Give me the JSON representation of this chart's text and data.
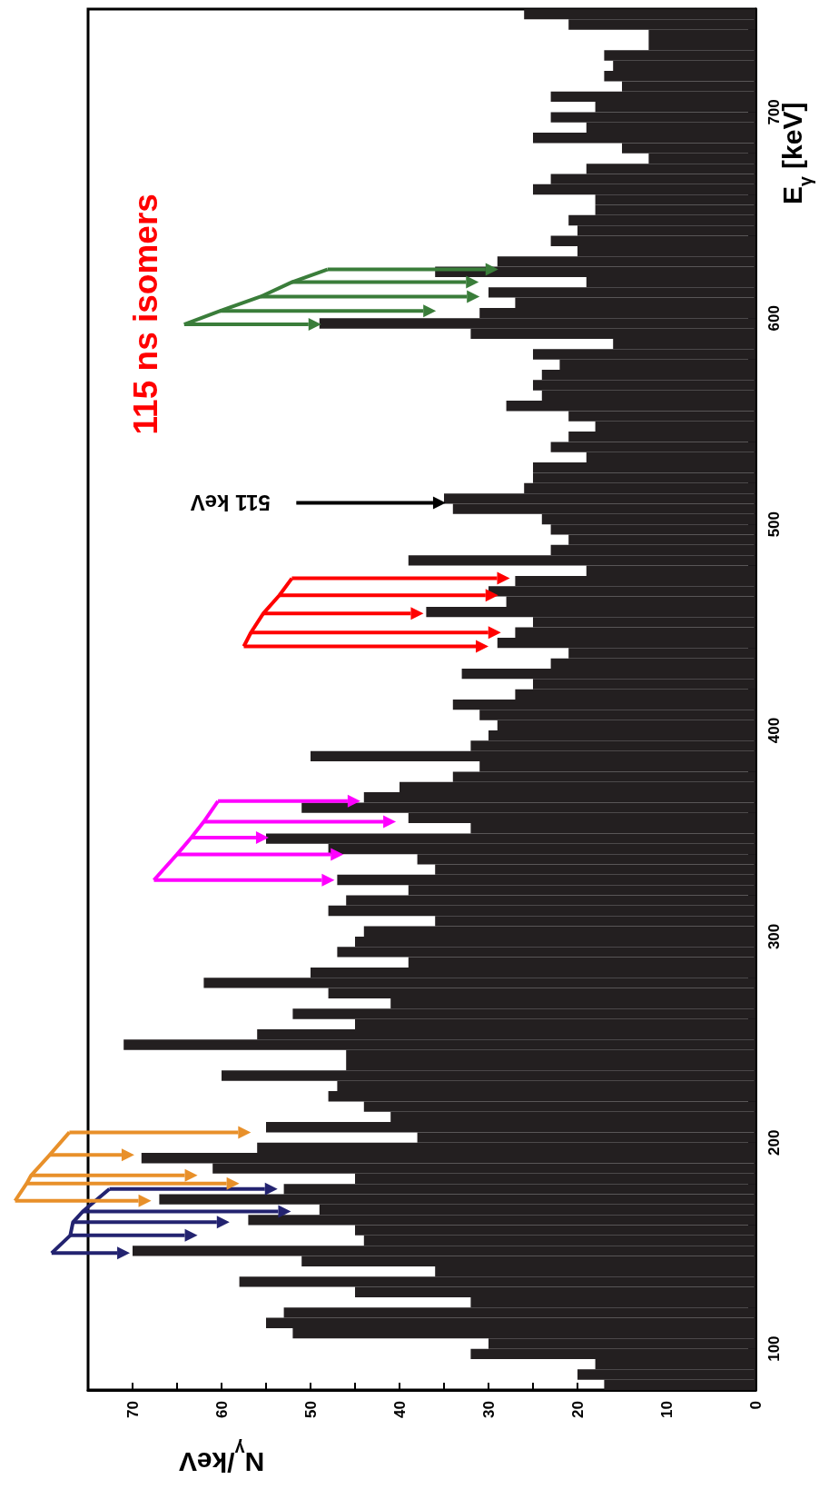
{
  "chart_data": {
    "type": "histogram",
    "orientation": "horizontal",
    "xlabel": "N$_{γ}$/keV",
    "ylabel": "E$_{γ}$ [keV]",
    "annotations": [
      "115 ns isomers",
      "511 keV"
    ],
    "color": "#231f20",
    "ylim": [
      80,
      750
    ],
    "xlim": [
      75,
      0
    ],
    "yticks": [
      {
        "value": 80,
        "label": null
      },
      100,
      {
        "value": 120,
        "label": null
      },
      {
        "value": 140,
        "label": null
      },
      {
        "value": 160,
        "label": null
      },
      {
        "value": 180,
        "label": null
      },
      200,
      {
        "value": 220,
        "label": null
      },
      {
        "value": 240,
        "label": null
      },
      {
        "value": 260,
        "label": null
      },
      {
        "value": 280,
        "label": null
      },
      300,
      {
        "value": 320,
        "label": null
      },
      {
        "value": 340,
        "label": null
      },
      {
        "value": 360,
        "label": null
      },
      {
        "value": 380,
        "label": null
      },
      400,
      {
        "value": 420,
        "label": null
      },
      {
        "value": 440,
        "label": null
      },
      {
        "value": 460,
        "label": null
      },
      {
        "value": 480,
        "label": null
      },
      500,
      {
        "value": 520,
        "label": null
      },
      {
        "value": 540,
        "label": null
      },
      {
        "value": 560,
        "label": null
      },
      {
        "value": 580,
        "label": null
      },
      600,
      {
        "value": 620,
        "label": null
      },
      {
        "value": 640,
        "label": null
      },
      {
        "value": 660,
        "label": null
      },
      {
        "value": 680,
        "label": null
      },
      700,
      {
        "value": 720,
        "label": null
      },
      {
        "value": 740,
        "label": null
      }
    ],
    "xticks": [
      0,
      {
        "value": 5,
        "label": null
      },
      10,
      {
        "value": 15,
        "label": null
      },
      20,
      {
        "value": 25,
        "label": null
      },
      30,
      {
        "value": 35,
        "label": null
      },
      40,
      {
        "value": 45,
        "label": null
      },
      50,
      {
        "value": 55,
        "label": null
      },
      60,
      {
        "value": 65,
        "label": null
      },
      70,
      {
        "value": 75,
        "label": null
      }
    ],
    "bins": [
      80,
      85,
      90,
      95,
      100,
      105,
      110,
      115,
      120,
      125,
      130,
      135,
      140,
      145,
      150,
      155,
      160,
      165,
      170,
      175,
      180,
      185,
      190,
      195,
      200,
      205,
      210,
      215,
      220,
      225,
      230,
      235,
      240,
      245,
      250,
      255,
      260,
      265,
      270,
      275,
      280,
      285,
      290,
      295,
      300,
      305,
      310,
      315,
      320,
      325,
      330,
      335,
      340,
      345,
      350,
      355,
      360,
      365,
      370,
      375,
      380,
      385,
      390,
      395,
      400,
      405,
      410,
      415,
      420,
      425,
      430,
      435,
      440,
      445,
      450,
      455,
      460,
      465,
      470,
      475,
      480,
      485,
      490,
      495,
      500,
      505,
      510,
      515,
      520,
      525,
      530,
      535,
      540,
      545,
      550,
      555,
      560,
      565,
      570,
      575,
      580,
      585,
      590,
      595,
      600,
      605,
      610,
      615,
      620,
      625,
      630,
      635,
      640,
      645,
      650,
      655,
      660,
      665,
      670,
      675,
      680,
      685,
      690,
      695,
      700,
      705,
      710,
      715,
      720,
      725,
      730,
      735,
      740,
      745,
      750
    ],
    "values": [
      17,
      20,
      18,
      32,
      30,
      52,
      55,
      53,
      32,
      45,
      58,
      36,
      51,
      70,
      44,
      45,
      57,
      49,
      67,
      53,
      45,
      61,
      69,
      56,
      38,
      55,
      41,
      44,
      48,
      47,
      60,
      46,
      46,
      71,
      56,
      45,
      52,
      41,
      48,
      62,
      50,
      39,
      47,
      45,
      44,
      36,
      48,
      46,
      39,
      47,
      36,
      38,
      48,
      55,
      32,
      39,
      51,
      44,
      40,
      34,
      31,
      50,
      32,
      30,
      29,
      31,
      34,
      27,
      25,
      33,
      23,
      21,
      29,
      27,
      25,
      37,
      28,
      30,
      27,
      19,
      39,
      23,
      21,
      23,
      24,
      34,
      35,
      26,
      25,
      25,
      19,
      23,
      21,
      18,
      21,
      28,
      24,
      25,
      24,
      22,
      25,
      16,
      32,
      49,
      31,
      27,
      30,
      19,
      36,
      29,
      20,
      23,
      20,
      21,
      18,
      18,
      25,
      23,
      19,
      12,
      15,
      25,
      19,
      23,
      18,
      23,
      15,
      17,
      16,
      17,
      12,
      12,
      21,
      26
    ]
  }
}
